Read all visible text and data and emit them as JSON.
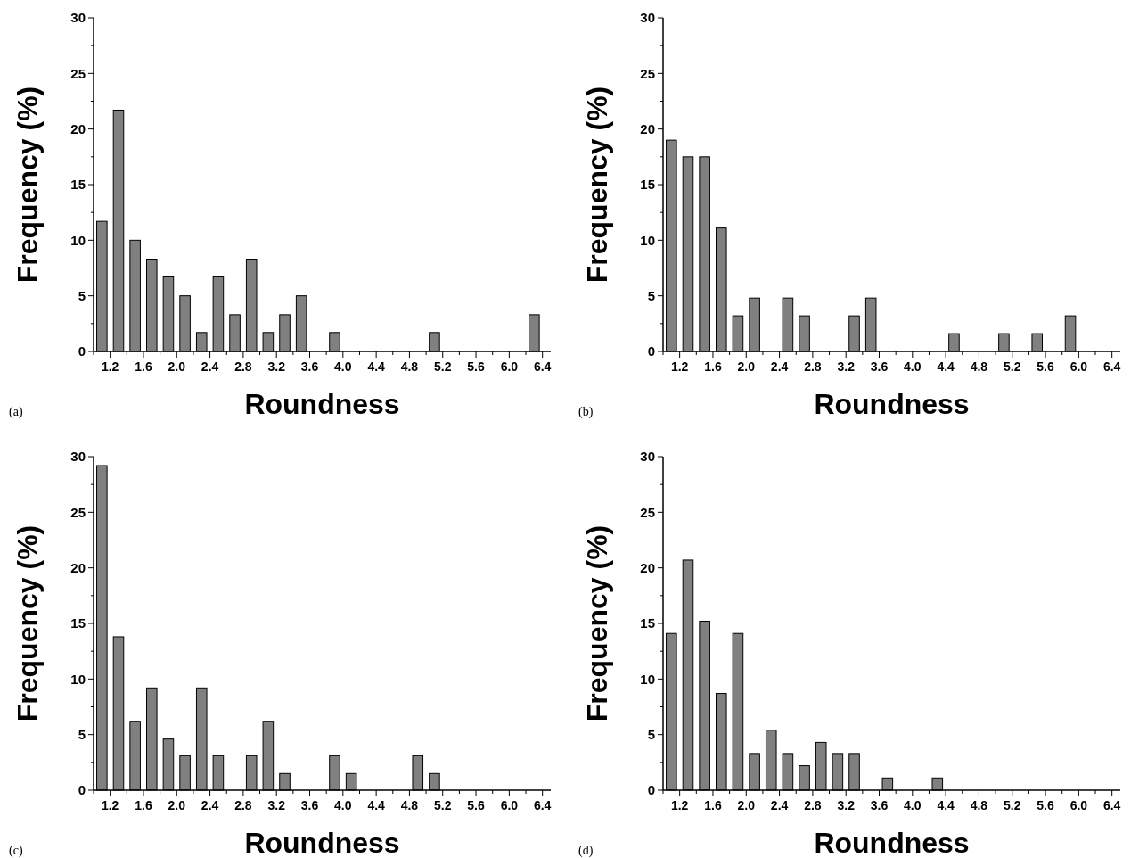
{
  "chart_data": [
    {
      "type": "histogram",
      "xlabel": "Roundness",
      "ylabel": "Frequency (%)",
      "annotations": [
        "(a)"
      ],
      "color": "#808080",
      "bins": [
        1.0,
        1.2,
        1.4,
        1.6,
        1.8,
        2.0,
        2.2,
        2.4,
        2.6,
        2.8,
        3.0,
        3.2,
        3.4,
        3.6,
        3.8,
        4.0,
        4.2,
        4.4,
        4.6,
        4.8,
        5.0,
        5.2,
        5.4,
        5.6,
        5.8,
        6.0,
        6.2,
        6.4
      ],
      "values": [
        11.7,
        21.7,
        10,
        8.3,
        6.7,
        5,
        1.7,
        6.7,
        3.3,
        8.3,
        1.7,
        3.3,
        5,
        0,
        1.7,
        0,
        0,
        0,
        0,
        0,
        1.7,
        0,
        0,
        0,
        0,
        0,
        3.3
      ],
      "xlim": [
        1.0,
        6.5
      ],
      "ylim": [
        0,
        30
      ],
      "xticks": [
        {
          "value": 1.0,
          "label": null
        },
        {
          "value": 1.2,
          "label": "1.2"
        },
        {
          "value": 1.4,
          "label": null
        },
        {
          "value": 1.6,
          "label": "1.6"
        },
        {
          "value": 1.8,
          "label": null
        },
        {
          "value": 2.0,
          "label": "2.0"
        },
        {
          "value": 2.2,
          "label": null
        },
        {
          "value": 2.4,
          "label": "2.4"
        },
        {
          "value": 2.6,
          "label": null
        },
        {
          "value": 2.8,
          "label": "2.8"
        },
        {
          "value": 3.0,
          "label": null
        },
        {
          "value": 3.2,
          "label": "3.2"
        },
        {
          "value": 3.4,
          "label": null
        },
        {
          "value": 3.6,
          "label": "3.6"
        },
        {
          "value": 3.8,
          "label": null
        },
        {
          "value": 4.0,
          "label": "4.0"
        },
        {
          "value": 4.2,
          "label": null
        },
        {
          "value": 4.4,
          "label": "4.4"
        },
        {
          "value": 4.6,
          "label": null
        },
        {
          "value": 4.8,
          "label": "4.8"
        },
        {
          "value": 5.0,
          "label": null
        },
        {
          "value": 5.2,
          "label": "5.2"
        },
        {
          "value": 5.4,
          "label": null
        },
        {
          "value": 5.6,
          "label": "5.6"
        },
        {
          "value": 5.8,
          "label": null
        },
        {
          "value": 6.0,
          "label": "6.0"
        },
        {
          "value": 6.2,
          "label": null
        },
        {
          "value": 6.4,
          "label": "6.4"
        }
      ],
      "yticks": [
        0,
        {
          "value": 2.5,
          "label": null
        },
        5,
        {
          "value": 7.5,
          "label": null
        },
        10,
        {
          "value": 12.5,
          "label": null
        },
        15,
        {
          "value": 17.5,
          "label": null
        },
        20,
        {
          "value": 22.5,
          "label": null
        },
        25,
        {
          "value": 27.5,
          "label": null
        },
        30
      ]
    },
    {
      "type": "histogram",
      "xlabel": "Roundness",
      "ylabel": "Frequency (%)",
      "annotations": [
        "(b)"
      ],
      "color": "#808080",
      "bins": [
        1.0,
        1.2,
        1.4,
        1.6,
        1.8,
        2.0,
        2.2,
        2.4,
        2.6,
        2.8,
        3.0,
        3.2,
        3.4,
        3.6,
        3.8,
        4.0,
        4.2,
        4.4,
        4.6,
        4.8,
        5.0,
        5.2,
        5.4,
        5.6,
        5.8,
        6.0,
        6.2,
        6.4
      ],
      "values": [
        19.0,
        17.5,
        17.5,
        11.1,
        3.2,
        4.8,
        0,
        4.8,
        3.2,
        0,
        0,
        3.2,
        4.8,
        0,
        0,
        0,
        0,
        1.6,
        0,
        0,
        1.6,
        0,
        1.6,
        0,
        3.2,
        0,
        0
      ],
      "xlim": [
        1.0,
        6.5
      ],
      "ylim": [
        0,
        30
      ],
      "xticks": [
        {
          "value": 1.0,
          "label": null
        },
        {
          "value": 1.2,
          "label": "1.2"
        },
        {
          "value": 1.4,
          "label": null
        },
        {
          "value": 1.6,
          "label": "1.6"
        },
        {
          "value": 1.8,
          "label": null
        },
        {
          "value": 2.0,
          "label": "2.0"
        },
        {
          "value": 2.2,
          "label": null
        },
        {
          "value": 2.4,
          "label": "2.4"
        },
        {
          "value": 2.6,
          "label": null
        },
        {
          "value": 2.8,
          "label": "2.8"
        },
        {
          "value": 3.0,
          "label": null
        },
        {
          "value": 3.2,
          "label": "3.2"
        },
        {
          "value": 3.4,
          "label": null
        },
        {
          "value": 3.6,
          "label": "3.6"
        },
        {
          "value": 3.8,
          "label": null
        },
        {
          "value": 4.0,
          "label": "4.0"
        },
        {
          "value": 4.2,
          "label": null
        },
        {
          "value": 4.4,
          "label": "4.4"
        },
        {
          "value": 4.6,
          "label": null
        },
        {
          "value": 4.8,
          "label": "4.8"
        },
        {
          "value": 5.0,
          "label": null
        },
        {
          "value": 5.2,
          "label": "5.2"
        },
        {
          "value": 5.4,
          "label": null
        },
        {
          "value": 5.6,
          "label": "5.6"
        },
        {
          "value": 5.8,
          "label": null
        },
        {
          "value": 6.0,
          "label": "6.0"
        },
        {
          "value": 6.2,
          "label": null
        },
        {
          "value": 6.4,
          "label": "6.4"
        }
      ],
      "yticks": [
        0,
        {
          "value": 2.5,
          "label": null
        },
        5,
        {
          "value": 7.5,
          "label": null
        },
        10,
        {
          "value": 12.5,
          "label": null
        },
        15,
        {
          "value": 17.5,
          "label": null
        },
        20,
        {
          "value": 22.5,
          "label": null
        },
        25,
        {
          "value": 27.5,
          "label": null
        },
        30
      ]
    },
    {
      "type": "histogram",
      "xlabel": "Roundness",
      "ylabel": "Frequency (%)",
      "annotations": [
        "(c)"
      ],
      "color": "#808080",
      "bins": [
        1.0,
        1.2,
        1.4,
        1.6,
        1.8,
        2.0,
        2.2,
        2.4,
        2.6,
        2.8,
        3.0,
        3.2,
        3.4,
        3.6,
        3.8,
        4.0,
        4.2,
        4.4,
        4.6,
        4.8,
        5.0,
        5.2,
        5.4,
        5.6,
        5.8,
        6.0,
        6.2,
        6.4
      ],
      "values": [
        29.2,
        13.8,
        6.2,
        9.2,
        4.6,
        3.1,
        9.2,
        3.1,
        0,
        3.1,
        6.2,
        1.5,
        0,
        0,
        3.1,
        1.5,
        0,
        0,
        0,
        3.1,
        1.5,
        0,
        0,
        0,
        0,
        0,
        0
      ],
      "xlim": [
        1.0,
        6.5
      ],
      "ylim": [
        0,
        30
      ],
      "xticks": [
        {
          "value": 1.0,
          "label": null
        },
        {
          "value": 1.2,
          "label": "1.2"
        },
        {
          "value": 1.4,
          "label": null
        },
        {
          "value": 1.6,
          "label": "1.6"
        },
        {
          "value": 1.8,
          "label": null
        },
        {
          "value": 2.0,
          "label": "2.0"
        },
        {
          "value": 2.2,
          "label": null
        },
        {
          "value": 2.4,
          "label": "2.4"
        },
        {
          "value": 2.6,
          "label": null
        },
        {
          "value": 2.8,
          "label": "2.8"
        },
        {
          "value": 3.0,
          "label": null
        },
        {
          "value": 3.2,
          "label": "3.2"
        },
        {
          "value": 3.4,
          "label": null
        },
        {
          "value": 3.6,
          "label": "3.6"
        },
        {
          "value": 3.8,
          "label": null
        },
        {
          "value": 4.0,
          "label": "4.0"
        },
        {
          "value": 4.2,
          "label": null
        },
        {
          "value": 4.4,
          "label": "4.4"
        },
        {
          "value": 4.6,
          "label": null
        },
        {
          "value": 4.8,
          "label": "4.8"
        },
        {
          "value": 5.0,
          "label": null
        },
        {
          "value": 5.2,
          "label": "5.2"
        },
        {
          "value": 5.4,
          "label": null
        },
        {
          "value": 5.6,
          "label": "5.6"
        },
        {
          "value": 5.8,
          "label": null
        },
        {
          "value": 6.0,
          "label": "6.0"
        },
        {
          "value": 6.2,
          "label": null
        },
        {
          "value": 6.4,
          "label": "6.4"
        }
      ],
      "yticks": [
        0,
        {
          "value": 2.5,
          "label": null
        },
        5,
        {
          "value": 7.5,
          "label": null
        },
        10,
        {
          "value": 12.5,
          "label": null
        },
        15,
        {
          "value": 17.5,
          "label": null
        },
        20,
        {
          "value": 22.5,
          "label": null
        },
        25,
        {
          "value": 27.5,
          "label": null
        },
        30
      ]
    },
    {
      "type": "histogram",
      "xlabel": "Roundness",
      "ylabel": "Frequency (%)",
      "annotations": [
        "(d)"
      ],
      "color": "#808080",
      "bins": [
        1.0,
        1.2,
        1.4,
        1.6,
        1.8,
        2.0,
        2.2,
        2.4,
        2.6,
        2.8,
        3.0,
        3.2,
        3.4,
        3.6,
        3.8,
        4.0,
        4.2,
        4.4,
        4.6,
        4.8,
        5.0,
        5.2,
        5.4,
        5.6,
        5.8,
        6.0,
        6.2,
        6.4
      ],
      "values": [
        14.1,
        20.7,
        15.2,
        8.7,
        14.1,
        3.3,
        5.4,
        3.3,
        2.2,
        4.3,
        3.3,
        3.3,
        0,
        1.1,
        0,
        0,
        1.1,
        0,
        0,
        0,
        0,
        0,
        0,
        0,
        0,
        0,
        0
      ],
      "xlim": [
        1.0,
        6.5
      ],
      "ylim": [
        0,
        30
      ],
      "xticks": [
        {
          "value": 1.0,
          "label": null
        },
        {
          "value": 1.2,
          "label": "1.2"
        },
        {
          "value": 1.4,
          "label": null
        },
        {
          "value": 1.6,
          "label": "1.6"
        },
        {
          "value": 1.8,
          "label": null
        },
        {
          "value": 2.0,
          "label": "2.0"
        },
        {
          "value": 2.2,
          "label": null
        },
        {
          "value": 2.4,
          "label": "2.4"
        },
        {
          "value": 2.6,
          "label": null
        },
        {
          "value": 2.8,
          "label": "2.8"
        },
        {
          "value": 3.0,
          "label": null
        },
        {
          "value": 3.2,
          "label": "3.2"
        },
        {
          "value": 3.4,
          "label": null
        },
        {
          "value": 3.6,
          "label": "3.6"
        },
        {
          "value": 3.8,
          "label": null
        },
        {
          "value": 4.0,
          "label": "4.0"
        },
        {
          "value": 4.2,
          "label": null
        },
        {
          "value": 4.4,
          "label": "4.4"
        },
        {
          "value": 4.6,
          "label": null
        },
        {
          "value": 4.8,
          "label": "4.8"
        },
        {
          "value": 5.0,
          "label": null
        },
        {
          "value": 5.2,
          "label": "5.2"
        },
        {
          "value": 5.4,
          "label": null
        },
        {
          "value": 5.6,
          "label": "5.6"
        },
        {
          "value": 5.8,
          "label": null
        },
        {
          "value": 6.0,
          "label": "6.0"
        },
        {
          "value": 6.2,
          "label": null
        },
        {
          "value": 6.4,
          "label": "6.4"
        }
      ],
      "yticks": [
        0,
        {
          "value": 2.5,
          "label": null
        },
        5,
        {
          "value": 7.5,
          "label": null
        },
        10,
        {
          "value": 12.5,
          "label": null
        },
        15,
        {
          "value": 17.5,
          "label": null
        },
        20,
        {
          "value": 22.5,
          "label": null
        },
        25,
        {
          "value": 27.5,
          "label": null
        },
        30
      ]
    }
  ]
}
